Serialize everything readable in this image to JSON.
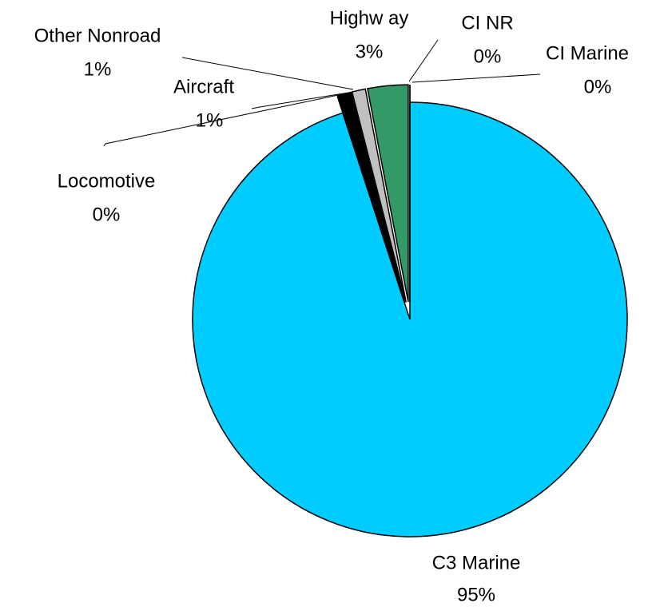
{
  "chart_data": {
    "type": "pie",
    "categories": [
      "CI Marine",
      "C3 Marine",
      "Locomotive",
      "Aircraft",
      "Other Nonroad",
      "Highw ay",
      "CI NR"
    ],
    "values": [
      0,
      95,
      0,
      1,
      1,
      3,
      0
    ],
    "value_labels": [
      "0%",
      "95%",
      "0%",
      "1%",
      "1%",
      "3%",
      "0%"
    ],
    "colors": [
      "#9999ff",
      "#00ccff",
      "#333399",
      "#000000",
      "#c0c0c0",
      "#339966",
      "#ccccff"
    ]
  }
}
